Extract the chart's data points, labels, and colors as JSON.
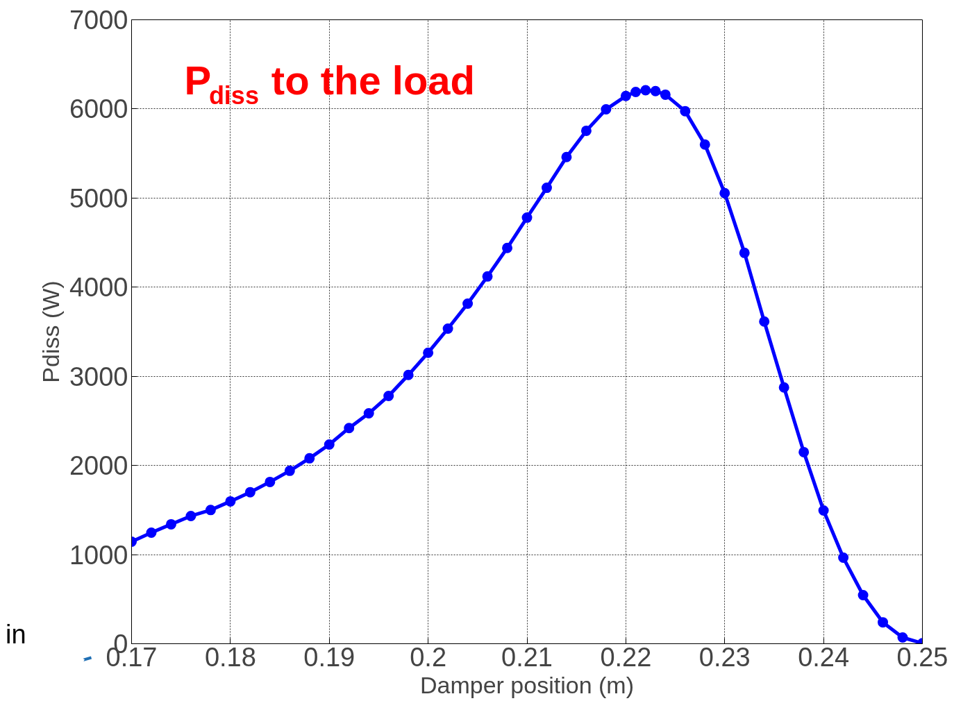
{
  "chart_data": {
    "type": "line",
    "xlabel": "Damper position (m)",
    "ylabel": "Pdiss (W)",
    "x": [
      0.17,
      0.172,
      0.174,
      0.176,
      0.178,
      0.18,
      0.182,
      0.184,
      0.186,
      0.188,
      0.19,
      0.192,
      0.194,
      0.196,
      0.198,
      0.2,
      0.202,
      0.204,
      0.206,
      0.208,
      0.21,
      0.212,
      0.214,
      0.216,
      0.218,
      0.22,
      0.221,
      0.222,
      0.223,
      0.224,
      0.226,
      0.228,
      0.23,
      0.232,
      0.234,
      0.236,
      0.238,
      0.24,
      0.242,
      0.244,
      0.246,
      0.248,
      0.25
    ],
    "series": [
      {
        "color": "#0000ff",
        "values": [
          1145,
          1246,
          1340,
          1433,
          1500,
          1597,
          1700,
          1815,
          1940,
          2080,
          2235,
          2420,
          2585,
          2780,
          3015,
          3265,
          3535,
          3815,
          4120,
          4440,
          4780,
          5115,
          5460,
          5755,
          5995,
          6145,
          6190,
          6210,
          6200,
          6160,
          5975,
          5600,
          5055,
          4385,
          3615,
          2875,
          2150,
          1495,
          965,
          545,
          240,
          70,
          5
        ]
      }
    ],
    "xlim": [
      0.17,
      0.25
    ],
    "xticks": [
      0.17,
      0.18,
      0.19,
      0.2,
      0.21,
      0.22,
      0.23,
      0.24,
      0.25
    ],
    "ylim": [
      0,
      7000
    ],
    "yticks": [
      0,
      1000,
      2000,
      3000,
      4000,
      5000,
      6000,
      7000
    ],
    "grid": true,
    "marker": "circle",
    "line_style": "solid",
    "annotations": [
      "P$_{diss}$ to the load",
      "in"
    ]
  }
}
